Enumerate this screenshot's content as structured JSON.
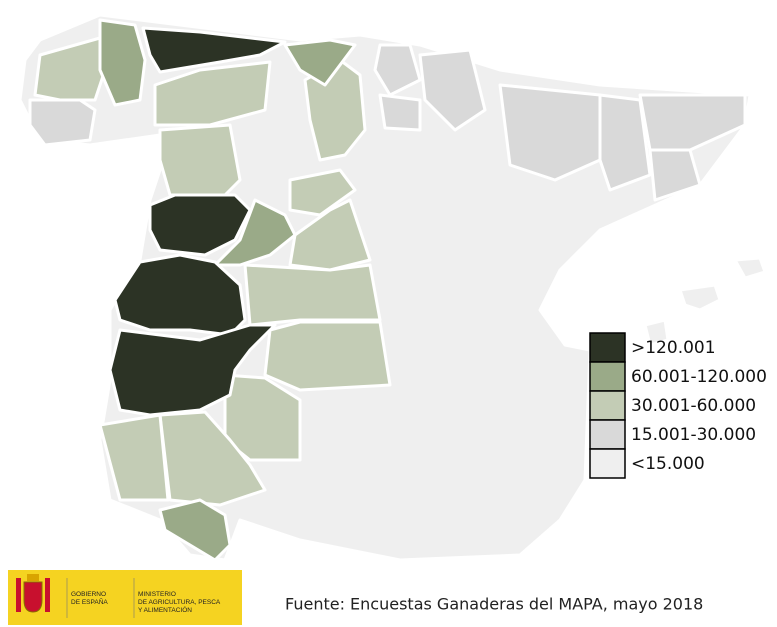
{
  "legend": [
    {
      "label": ">120.001",
      "color": "#2c3325"
    },
    {
      "label": "60.001-120.000",
      "color": "#9aaa88"
    },
    {
      "label": "30.001-60.000",
      "color": "#c3ccb5"
    },
    {
      "label": "15.001-30.000",
      "color": "#d9d9d9"
    },
    {
      "label": "<15.000",
      "color": "#efefef"
    }
  ],
  "source": "Fuente: Encuestas Ganaderas del MAPA, mayo 2018",
  "logo": {
    "government": [
      "GOBIERNO",
      "DE ESPAÑA"
    ],
    "ministry": [
      "MINISTERIO",
      "DE AGRICULTURA, PESCA",
      "Y ALIMENTACIÓN"
    ]
  }
}
